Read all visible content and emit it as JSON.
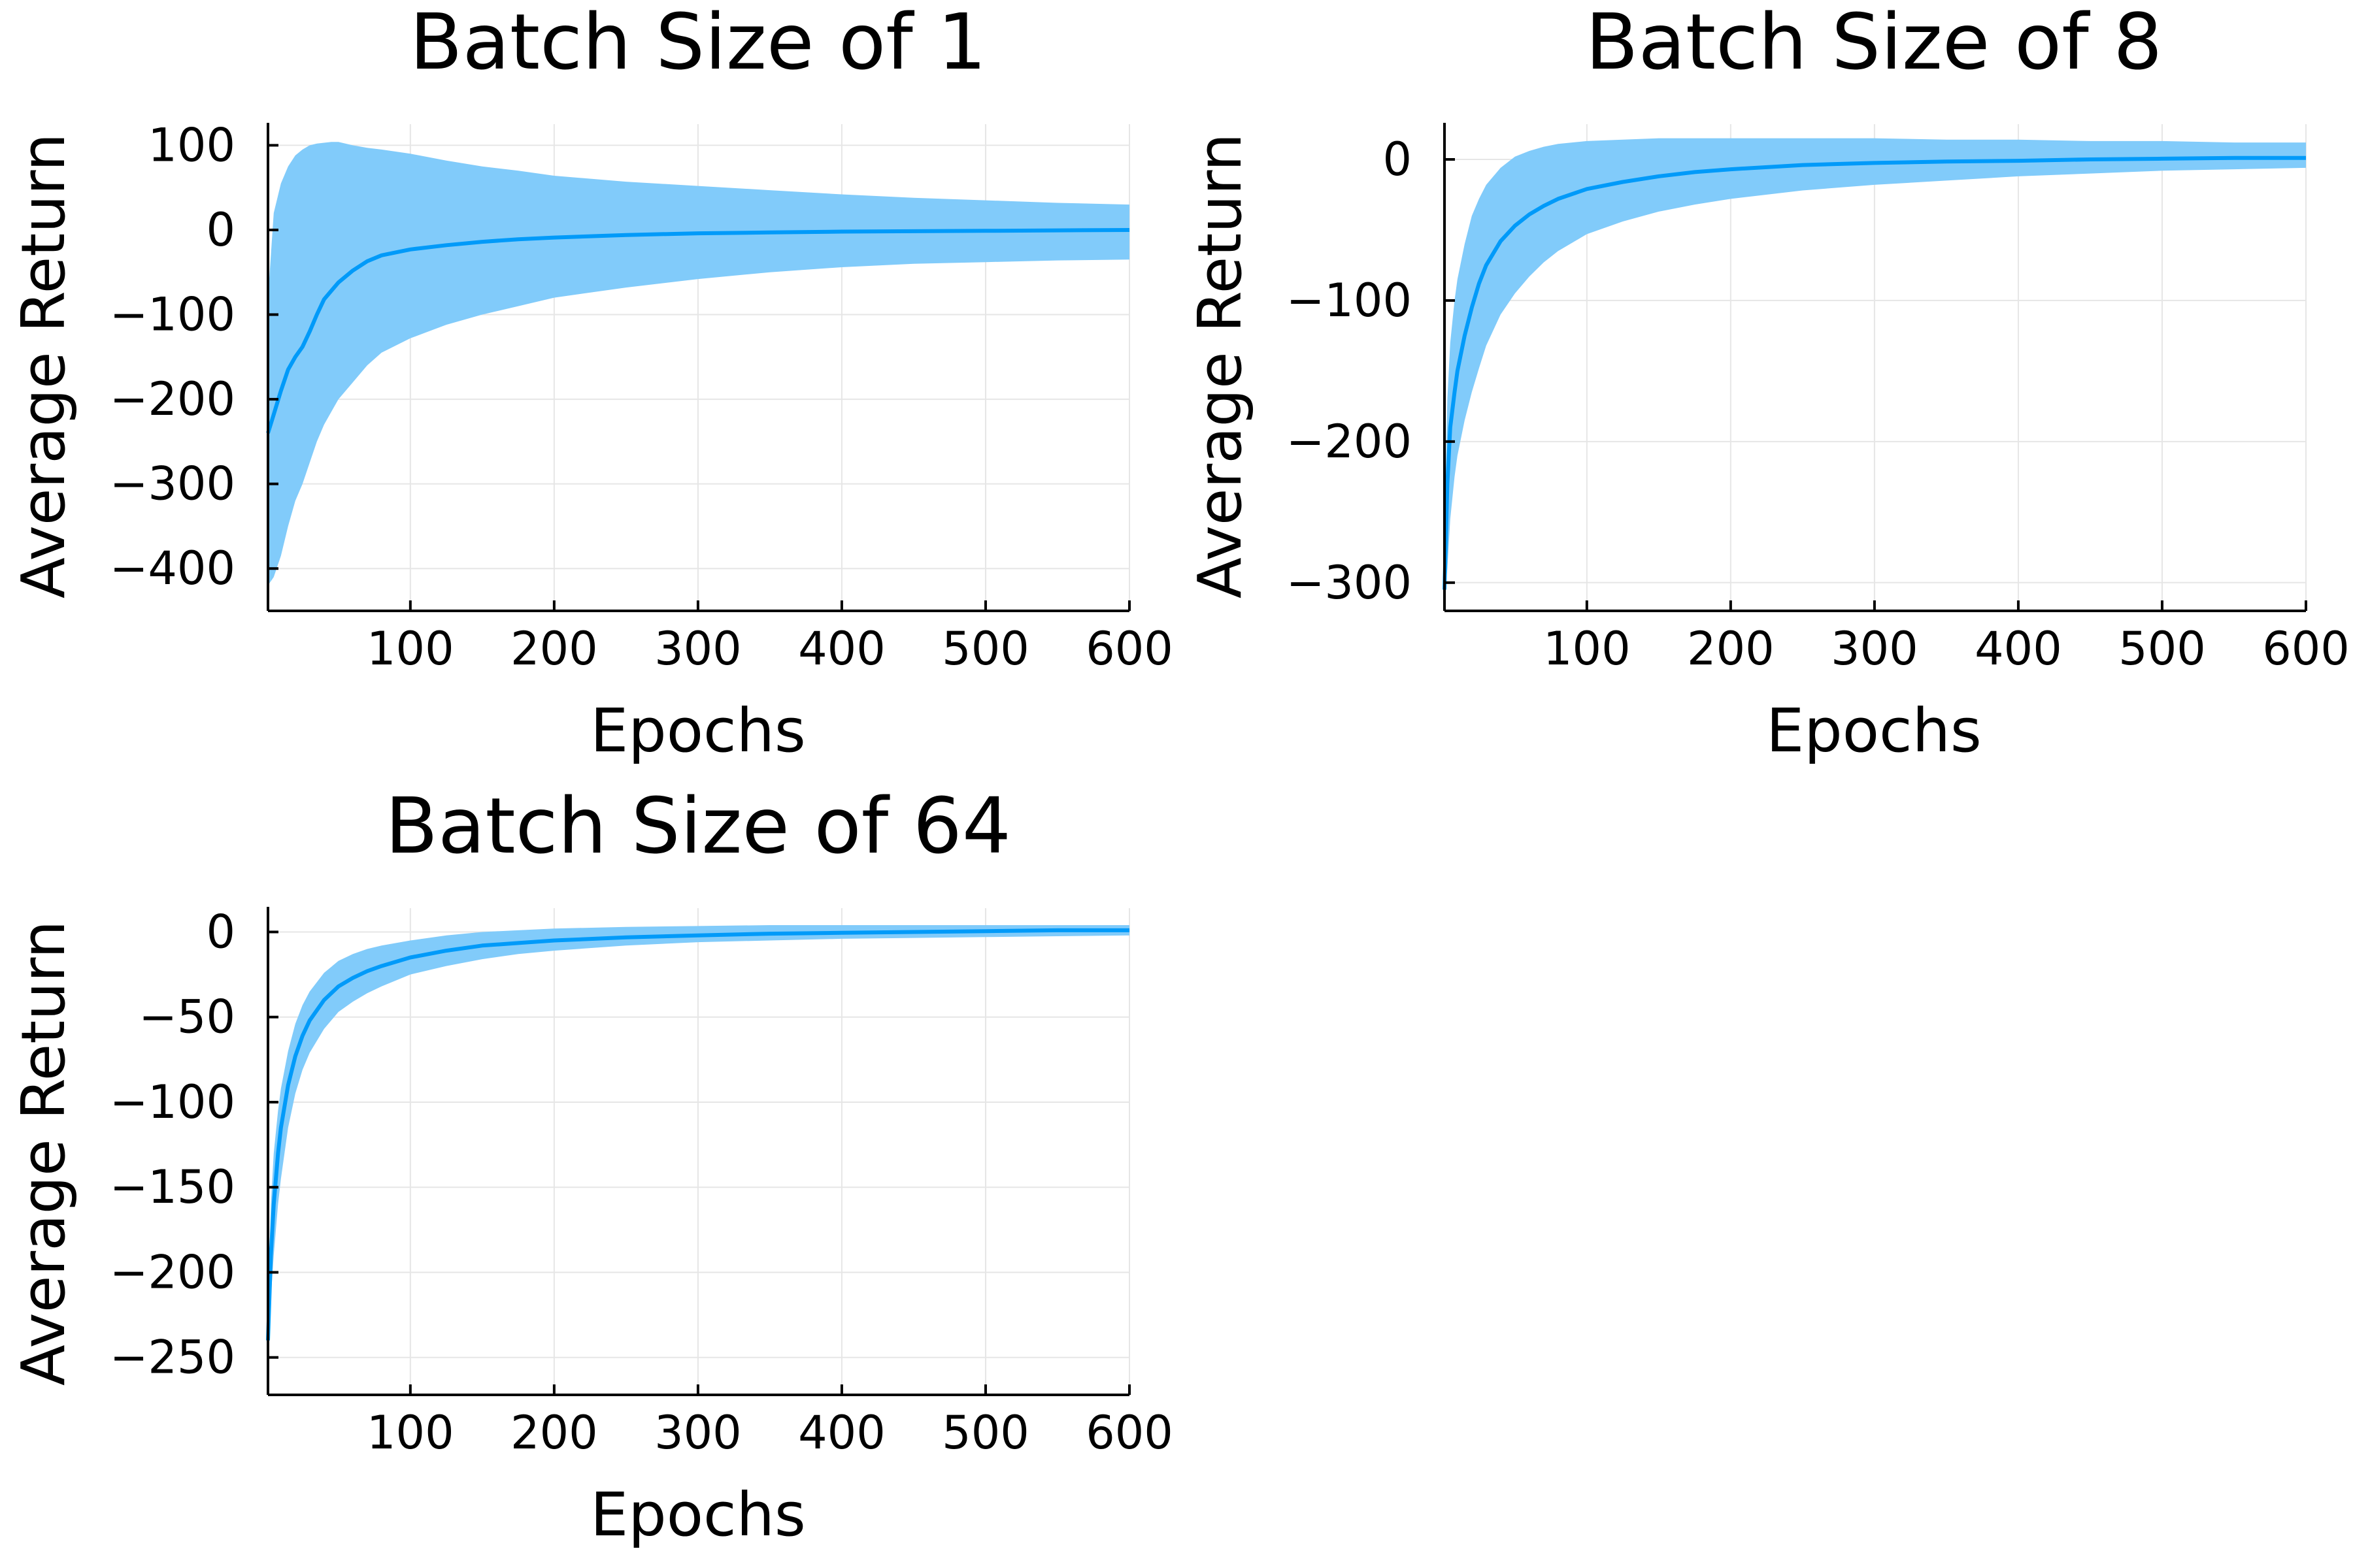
{
  "colors": {
    "line": "#009af9",
    "band": "#81cbfa",
    "grid": "#e6e6e6",
    "axis": "#000000",
    "background": "#ffffff"
  },
  "chart_data": [
    {
      "type": "line",
      "title": "Batch Size of 1",
      "xlabel": "Epochs",
      "ylabel": "Average Return",
      "xlim": [
        1,
        600
      ],
      "ylim": [
        -450,
        125
      ],
      "xticks": [
        100,
        200,
        300,
        400,
        500,
        600
      ],
      "xtick_labels": [
        "100",
        "200",
        "300",
        "400",
        "500",
        "600"
      ],
      "yticks": [
        -400,
        -300,
        -200,
        -100,
        0,
        100
      ],
      "ytick_labels": [
        "−400",
        "−300",
        "−200",
        "−100",
        "0",
        "100"
      ],
      "grid": true,
      "legend": "none",
      "series": [
        {
          "kind": "mean",
          "x": [
            1,
            5,
            10,
            15,
            20,
            25,
            30,
            35,
            40,
            45,
            50,
            60,
            70,
            80,
            100,
            125,
            150,
            175,
            200,
            250,
            300,
            350,
            400,
            450,
            500,
            550,
            600
          ],
          "values": [
            -240,
            -218,
            -190,
            -165,
            -150,
            -138,
            -120,
            -100,
            -82,
            -72,
            -62,
            -48,
            -37,
            -30,
            -23,
            -18,
            -14,
            -11,
            -9,
            -6,
            -4,
            -3,
            -2,
            -1.5,
            -1,
            -0.5,
            0
          ]
        },
        {
          "kind": "band-upper",
          "x": [
            1,
            5,
            10,
            15,
            20,
            25,
            30,
            35,
            40,
            45,
            50,
            60,
            70,
            80,
            100,
            125,
            150,
            175,
            200,
            250,
            300,
            350,
            400,
            450,
            500,
            550,
            600
          ],
          "values": [
            -80,
            20,
            55,
            75,
            88,
            95,
            100,
            102,
            103,
            104,
            104,
            100,
            97,
            95,
            90,
            82,
            75,
            70,
            64,
            57,
            52,
            47,
            42,
            38,
            35,
            32,
            30
          ]
        },
        {
          "kind": "band-lower",
          "x": [
            1,
            5,
            10,
            15,
            20,
            25,
            30,
            35,
            40,
            45,
            50,
            60,
            70,
            80,
            100,
            125,
            150,
            175,
            200,
            250,
            300,
            350,
            400,
            450,
            500,
            550,
            600
          ],
          "values": [
            -420,
            -410,
            -385,
            -350,
            -320,
            -300,
            -275,
            -250,
            -230,
            -215,
            -200,
            -180,
            -160,
            -145,
            -128,
            -112,
            -100,
            -90,
            -80,
            -68,
            -58,
            -50,
            -44,
            -40,
            -38,
            -36,
            -35
          ]
        }
      ]
    },
    {
      "type": "line",
      "title": "Batch Size of 8",
      "xlabel": "Epochs",
      "ylabel": "Average Return",
      "xlim": [
        1,
        600
      ],
      "ylim": [
        -320,
        25
      ],
      "xticks": [
        100,
        200,
        300,
        400,
        500,
        600
      ],
      "xtick_labels": [
        "100",
        "200",
        "300",
        "400",
        "500",
        "600"
      ],
      "yticks": [
        -300,
        -200,
        -100,
        0
      ],
      "ytick_labels": [
        "−300",
        "−200",
        "−100",
        "0"
      ],
      "grid": true,
      "legend": "none",
      "series": [
        {
          "kind": "mean",
          "x": [
            1,
            3,
            5,
            8,
            10,
            15,
            20,
            25,
            30,
            40,
            50,
            60,
            70,
            80,
            100,
            125,
            150,
            175,
            200,
            250,
            300,
            350,
            400,
            450,
            500,
            550,
            600
          ],
          "values": [
            -305,
            -230,
            -190,
            -165,
            -150,
            -125,
            -105,
            -88,
            -75,
            -58,
            -47,
            -39,
            -33,
            -28,
            -21,
            -16,
            -12,
            -9,
            -7,
            -4,
            -2.5,
            -1.5,
            -1,
            0,
            0.5,
            1,
            1
          ]
        },
        {
          "kind": "band-upper",
          "x": [
            1,
            3,
            5,
            8,
            10,
            15,
            20,
            25,
            30,
            40,
            50,
            60,
            70,
            80,
            100,
            125,
            150,
            175,
            200,
            250,
            300,
            350,
            400,
            450,
            500,
            550,
            600
          ],
          "values": [
            -260,
            -170,
            -130,
            -100,
            -85,
            -60,
            -40,
            -28,
            -18,
            -6,
            2,
            6,
            9,
            11,
            13,
            14,
            15,
            15,
            15,
            15,
            15,
            14,
            14,
            13,
            13,
            12,
            12
          ]
        },
        {
          "kind": "band-lower",
          "x": [
            1,
            3,
            5,
            8,
            10,
            15,
            20,
            25,
            30,
            40,
            50,
            60,
            70,
            80,
            100,
            125,
            150,
            175,
            200,
            250,
            300,
            350,
            400,
            450,
            500,
            550,
            600
          ],
          "values": [
            -310,
            -290,
            -255,
            -225,
            -210,
            -185,
            -165,
            -148,
            -132,
            -110,
            -95,
            -83,
            -73,
            -65,
            -53,
            -44,
            -37,
            -32,
            -28,
            -22,
            -18,
            -15,
            -12,
            -10,
            -8,
            -7,
            -6
          ]
        }
      ]
    },
    {
      "type": "line",
      "title": "Batch Size of 64",
      "xlabel": "Epochs",
      "ylabel": "Average Return",
      "xlim": [
        1,
        600
      ],
      "ylim": [
        -272,
        14
      ],
      "xticks": [
        100,
        200,
        300,
        400,
        500,
        600
      ],
      "xtick_labels": [
        "100",
        "200",
        "300",
        "400",
        "500",
        "600"
      ],
      "yticks": [
        -250,
        -200,
        -150,
        -100,
        -50,
        0
      ],
      "ytick_labels": [
        "−250",
        "−200",
        "−150",
        "−100",
        "−50",
        "0"
      ],
      "grid": true,
      "legend": "none",
      "series": [
        {
          "kind": "mean",
          "x": [
            1,
            3,
            5,
            8,
            10,
            15,
            20,
            25,
            30,
            40,
            50,
            60,
            70,
            80,
            100,
            125,
            150,
            175,
            200,
            250,
            300,
            350,
            400,
            450,
            500,
            550,
            600
          ],
          "values": [
            -240,
            -190,
            -160,
            -130,
            -115,
            -90,
            -73,
            -61,
            -52,
            -40,
            -32,
            -27,
            -23,
            -20,
            -15,
            -11,
            -8,
            -6.5,
            -5,
            -3.2,
            -2,
            -1,
            -0.5,
            0,
            0.5,
            1,
            1
          ]
        },
        {
          "kind": "band-upper",
          "x": [
            1,
            3,
            5,
            8,
            10,
            15,
            20,
            25,
            30,
            40,
            50,
            60,
            70,
            80,
            100,
            125,
            150,
            175,
            200,
            250,
            300,
            350,
            400,
            450,
            500,
            550,
            600
          ],
          "values": [
            -220,
            -160,
            -130,
            -105,
            -92,
            -70,
            -54,
            -43,
            -35,
            -24,
            -17,
            -13,
            -10,
            -8,
            -5,
            -2,
            0,
            1,
            2,
            3,
            3.5,
            4,
            4,
            4,
            4,
            4,
            4
          ]
        },
        {
          "kind": "band-lower",
          "x": [
            1,
            3,
            5,
            8,
            10,
            15,
            20,
            25,
            30,
            40,
            50,
            60,
            70,
            80,
            100,
            125,
            150,
            175,
            200,
            250,
            300,
            350,
            400,
            450,
            500,
            550,
            600
          ],
          "values": [
            -255,
            -215,
            -190,
            -160,
            -145,
            -115,
            -95,
            -81,
            -71,
            -57,
            -47,
            -41,
            -36,
            -32,
            -25,
            -20,
            -16,
            -13,
            -11,
            -8,
            -6,
            -5,
            -4,
            -3.5,
            -3,
            -2.5,
            -2
          ]
        }
      ]
    }
  ]
}
